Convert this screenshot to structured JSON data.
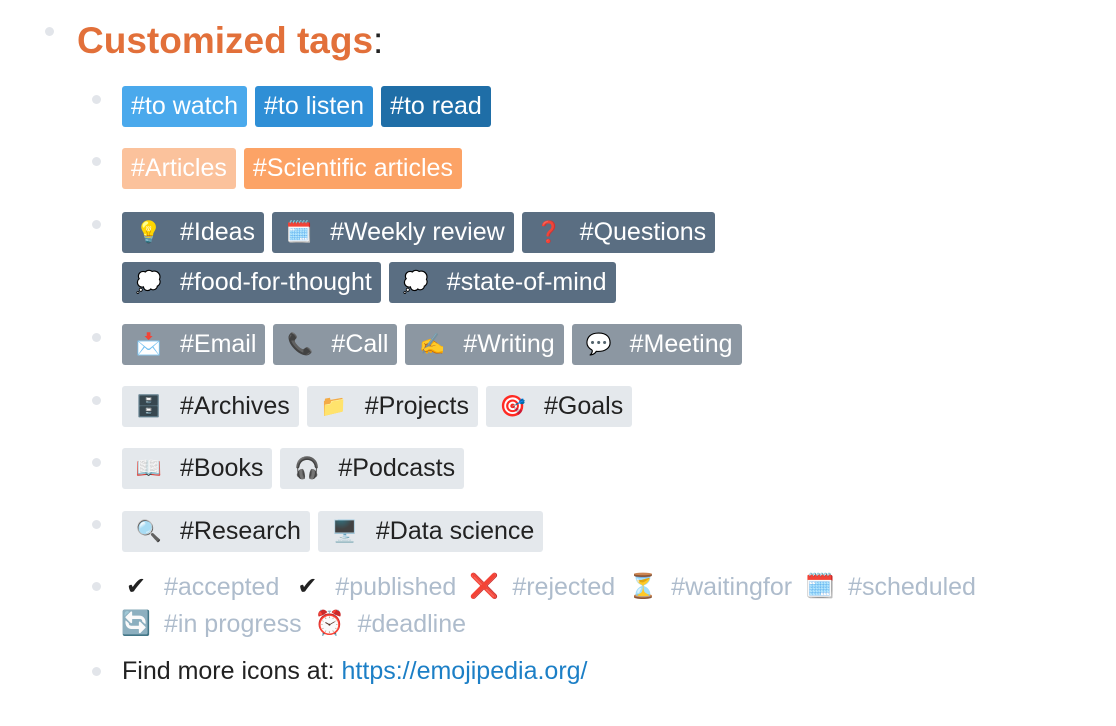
{
  "heading": {
    "title": "Customized tags",
    "colon": ":"
  },
  "rows": [
    {
      "tags": [
        {
          "label": "#to watch",
          "style": "t-blue1",
          "icon": ""
        },
        {
          "label": "#to listen",
          "style": "t-blue2",
          "icon": ""
        },
        {
          "label": "#to read",
          "style": "t-blue3",
          "icon": ""
        }
      ]
    },
    {
      "tags": [
        {
          "label": "#Articles",
          "style": "t-peach",
          "icon": ""
        },
        {
          "label": "#Scientific articles",
          "style": "t-orange",
          "icon": ""
        }
      ]
    },
    {
      "tags": [
        {
          "label": "#Ideas",
          "style": "t-slate",
          "icon": "💡",
          "icon_name": "lightbulb-icon"
        },
        {
          "label": "#Weekly review",
          "style": "t-slate",
          "icon": "🗓️",
          "icon_name": "calendar-icon"
        },
        {
          "label": "#Questions",
          "style": "t-slate",
          "icon": "❓",
          "icon_name": "question-mark-icon"
        }
      ]
    },
    {
      "tags": [
        {
          "label": "#food-for-thought",
          "style": "t-slate",
          "icon": "💭",
          "icon_name": "thought-bubble-icon"
        },
        {
          "label": "#state-of-mind",
          "style": "t-slate",
          "icon": "💭",
          "icon_name": "thought-bubble-icon"
        }
      ]
    },
    {
      "tags": [
        {
          "label": "#Email",
          "style": "t-gray",
          "icon": "📩",
          "icon_name": "envelope-icon"
        },
        {
          "label": "#Call",
          "style": "t-gray",
          "icon": "📞",
          "icon_name": "phone-icon"
        },
        {
          "label": "#Writing",
          "style": "t-gray",
          "icon": "✍️",
          "icon_name": "writing-hand-icon"
        },
        {
          "label": "#Meeting",
          "style": "t-gray",
          "icon": "💬",
          "icon_name": "speech-bubble-icon"
        }
      ]
    },
    {
      "tags": [
        {
          "label": "#Archives",
          "style": "t-light",
          "icon": "🗄️",
          "icon_name": "file-cabinet-icon"
        },
        {
          "label": "#Projects",
          "style": "t-light",
          "icon": "📁",
          "icon_name": "folder-icon"
        },
        {
          "label": "#Goals",
          "style": "t-light",
          "icon": "🎯",
          "icon_name": "target-icon"
        }
      ]
    },
    {
      "tags": [
        {
          "label": "#Books",
          "style": "t-light",
          "icon": "📖",
          "icon_name": "open-book-icon"
        },
        {
          "label": "#Podcasts",
          "style": "t-light",
          "icon": "🎧",
          "icon_name": "headphones-icon"
        }
      ]
    },
    {
      "tags": [
        {
          "label": "#Research",
          "style": "t-light",
          "icon": "🔍",
          "icon_name": "magnifier-icon"
        },
        {
          "label": "#Data science",
          "style": "t-light",
          "icon": "🖥️",
          "icon_name": "desktop-computer-icon"
        }
      ]
    }
  ],
  "statuses_line1": [
    {
      "icon": "✔",
      "icon_name": "check-mark-icon",
      "label": "#accepted"
    },
    {
      "icon": "✔",
      "icon_name": "check-mark-icon",
      "label": "#published"
    },
    {
      "icon": "❌",
      "icon_name": "cross-mark-icon",
      "label": "#rejected"
    },
    {
      "icon": "⏳",
      "icon_name": "hourglass-icon",
      "label": "#waitingfor"
    },
    {
      "icon": "🗓️",
      "icon_name": "calendar-icon",
      "label": "#scheduled"
    }
  ],
  "statuses_line2": [
    {
      "icon": "🔄",
      "icon_name": "refresh-icon",
      "label": "#in progress"
    },
    {
      "icon": "⏰",
      "icon_name": "alarm-clock-icon",
      "label": "#deadline"
    }
  ],
  "footer": {
    "text": "Find more icons at: ",
    "link": "https://emojipedia.org/"
  },
  "colors": {
    "heading": "#e2703a",
    "status_text": "#aebccc",
    "link": "#1c7fc6"
  }
}
